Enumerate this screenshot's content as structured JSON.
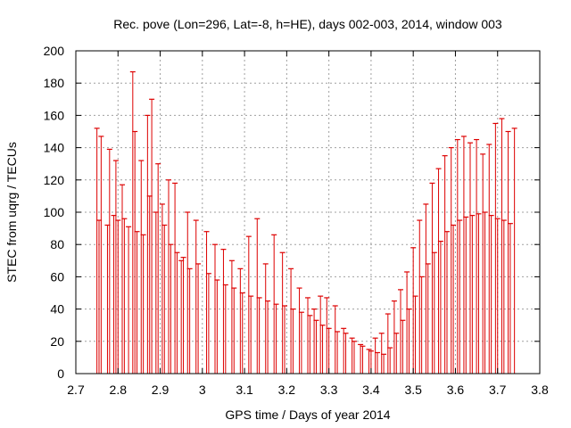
{
  "chart_data": {
    "type": "scatter",
    "title": "Rec. pove (Lon=296, Lat=-8, h=HE), days 002-003, 2014, window 003",
    "xlabel": "GPS time / Days of year 2014",
    "ylabel": "STEC from uqrg / TECUs",
    "xlim": [
      2.7,
      3.8
    ],
    "ylim": [
      0,
      200
    ],
    "xticks": [
      2.7,
      2.8,
      2.9,
      3.0,
      3.1,
      3.2,
      3.3,
      3.4,
      3.5,
      3.6,
      3.7,
      3.8
    ],
    "xtick_labels": [
      "2.7",
      "2.8",
      "2.9",
      "3",
      "3.1",
      "3.2",
      "3.3",
      "3.4",
      "3.5",
      "3.6",
      "3.7",
      "3.8"
    ],
    "yticks": [
      0,
      20,
      40,
      60,
      80,
      100,
      120,
      140,
      160,
      180,
      200
    ],
    "ytick_labels": [
      "0",
      "20",
      "40",
      "60",
      "80",
      "100",
      "120",
      "140",
      "160",
      "180",
      "200"
    ],
    "grid": true,
    "error_bars": "vertical, extending from 0 to each point",
    "color": "#dd0000",
    "series": [
      {
        "name": "STEC",
        "x": [
          2.75,
          2.755,
          2.76,
          2.775,
          2.78,
          2.79,
          2.795,
          2.8,
          2.81,
          2.815,
          2.825,
          2.835,
          2.84,
          2.845,
          2.855,
          2.86,
          2.87,
          2.875,
          2.88,
          2.89,
          2.895,
          2.905,
          2.91,
          2.92,
          2.925,
          2.935,
          2.94,
          2.95,
          2.955,
          2.965,
          2.97,
          2.985,
          2.99,
          3.01,
          3.015,
          3.03,
          3.035,
          3.05,
          3.055,
          3.07,
          3.075,
          3.09,
          3.095,
          3.11,
          3.115,
          3.13,
          3.135,
          3.15,
          3.155,
          3.17,
          3.175,
          3.19,
          3.195,
          3.21,
          3.215,
          3.23,
          3.235,
          3.25,
          3.255,
          3.265,
          3.27,
          3.28,
          3.285,
          3.295,
          3.3,
          3.315,
          3.32,
          3.335,
          3.34,
          3.355,
          3.36,
          3.375,
          3.38,
          3.395,
          3.4,
          3.41,
          3.415,
          3.425,
          3.43,
          3.44,
          3.445,
          3.455,
          3.46,
          3.47,
          3.475,
          3.485,
          3.49,
          3.5,
          3.505,
          3.515,
          3.52,
          3.53,
          3.535,
          3.545,
          3.55,
          3.56,
          3.565,
          3.575,
          3.58,
          3.59,
          3.595,
          3.605,
          3.61,
          3.62,
          3.625,
          3.635,
          3.64,
          3.65,
          3.655,
          3.665,
          3.67,
          3.68,
          3.685,
          3.695,
          3.7,
          3.71,
          3.715,
          3.725,
          3.73,
          3.74
        ],
        "y": [
          152,
          95,
          147,
          92,
          139,
          98,
          132,
          95,
          117,
          96,
          91,
          187,
          150,
          88,
          132,
          86,
          160,
          110,
          170,
          100,
          130,
          105,
          92,
          120,
          80,
          118,
          75,
          70,
          72,
          100,
          65,
          95,
          68,
          88,
          62,
          80,
          58,
          77,
          55,
          70,
          53,
          65,
          50,
          85,
          48,
          96,
          47,
          68,
          45,
          86,
          43,
          75,
          42,
          65,
          40,
          53,
          38,
          47,
          36,
          40,
          33,
          48,
          30,
          47,
          28,
          42,
          26,
          28,
          25,
          22,
          20,
          18,
          17,
          15,
          14,
          22,
          13,
          25,
          12,
          37,
          16,
          45,
          25,
          52,
          33,
          63,
          40,
          78,
          48,
          95,
          60,
          105,
          68,
          118,
          75,
          127,
          82,
          135,
          88,
          140,
          92,
          145,
          95,
          147,
          97,
          143,
          98,
          145,
          99,
          136,
          100,
          142,
          98,
          155,
          96,
          158,
          95,
          150,
          93,
          152
        ]
      }
    ]
  }
}
